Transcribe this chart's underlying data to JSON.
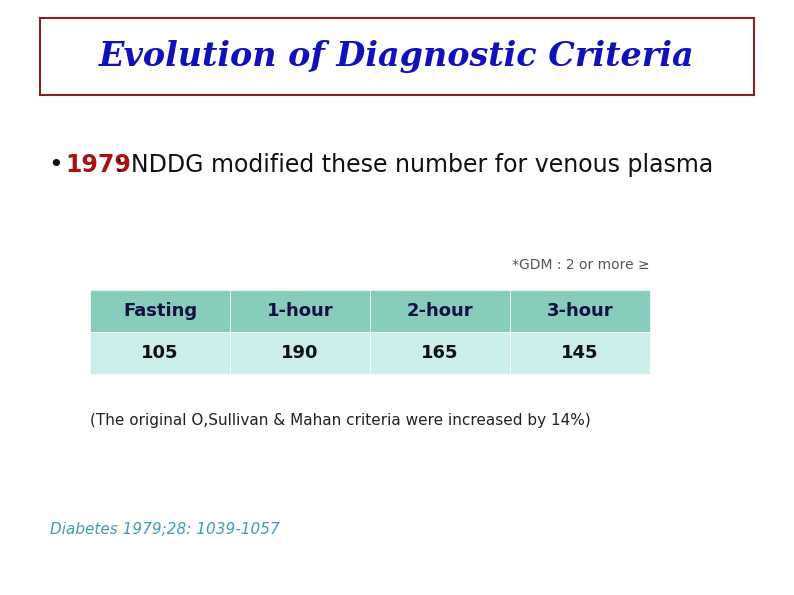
{
  "title": "Evolution of Diagnostic Criteria",
  "title_color": "#1111BB",
  "title_fontsize": 24,
  "title_box_edgecolor": "#882222",
  "bullet_year": "1979",
  "bullet_year_color": "#AA1111",
  "bullet_text": " : NDDG modified these number for venous plasma",
  "bullet_text_color": "#111111",
  "bullet_fontsize": 17,
  "gdm_note": "*GDM : 2 or more ≥",
  "gdm_note_color": "#555555",
  "gdm_note_fontsize": 10,
  "table_headers": [
    "Fasting",
    "1-hour",
    "2-hour",
    "3-hour"
  ],
  "table_values": [
    "105",
    "190",
    "165",
    "145"
  ],
  "table_header_bg": "#88CCBB",
  "table_value_bg": "#CCEEEA",
  "table_header_color": "#111144",
  "table_value_color": "#111111",
  "table_header_fontsize": 13,
  "table_value_fontsize": 13,
  "footnote": "(The original O,Sullivan & Mahan criteria were increased by 14%)",
  "footnote_color": "#222222",
  "footnote_fontsize": 11,
  "reference": "Diabetes 1979;28: 1039-1057",
  "reference_color": "#4499BB",
  "reference_fontsize": 11,
  "bg_color": "#FFFFFF",
  "fig_width": 7.94,
  "fig_height": 5.95,
  "fig_dpi": 100
}
